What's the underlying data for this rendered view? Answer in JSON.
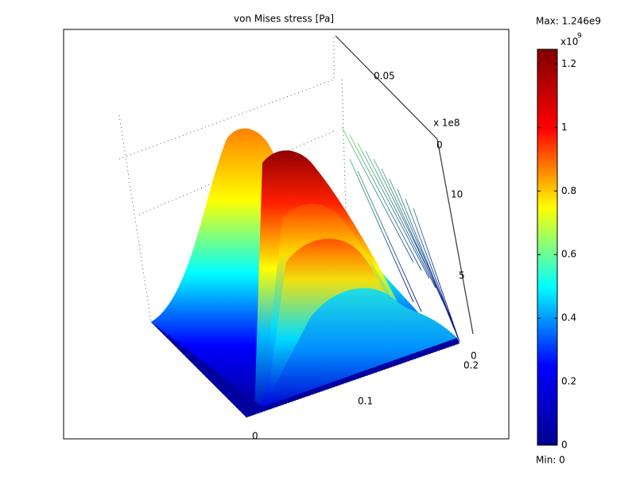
{
  "chart_data": {
    "type": "surface",
    "title": "von Mises stress [Pa]",
    "max_label": "Max: 1.246e9",
    "min_label": "Min: 0",
    "colorbar": {
      "lim": [
        0,
        1.246
      ],
      "ticks": [
        0,
        0.2,
        0.4,
        0.6,
        0.8,
        1,
        1.2
      ],
      "multiplier": "x10",
      "exponent": "9",
      "colors": [
        "#00008f",
        "#0000ff",
        "#00ffff",
        "#ffff00",
        "#ff0000",
        "#800000"
      ]
    },
    "axis_tick_labels": [
      "0.05",
      "x 1e8",
      "0",
      "10",
      "5",
      "0",
      "0.2",
      "0.1",
      "0"
    ]
  }
}
